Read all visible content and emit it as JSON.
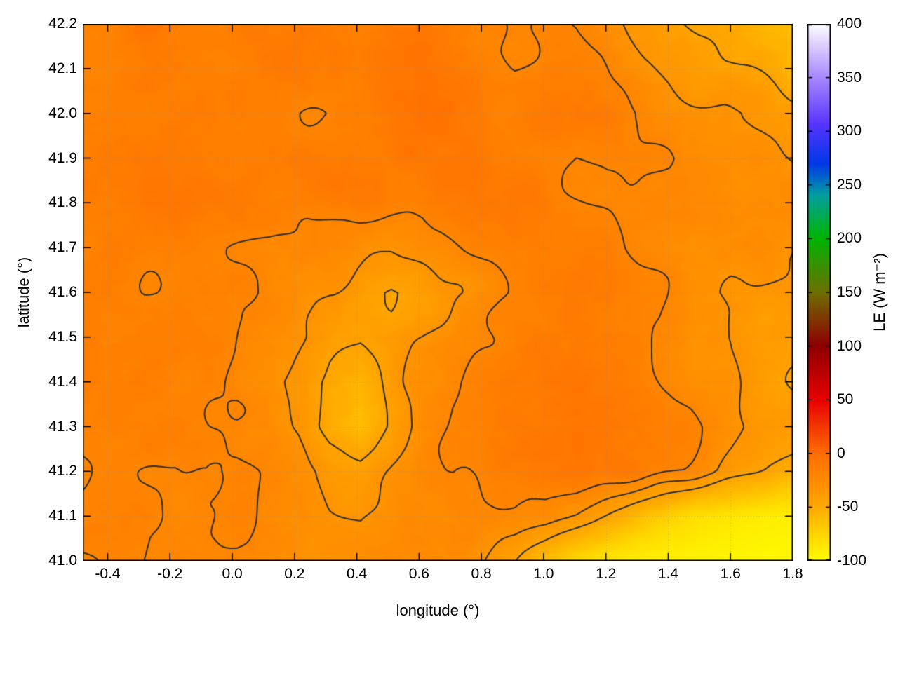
{
  "figure": {
    "background": "#ffffff"
  },
  "chart_data": {
    "type": "heatmap",
    "title": "",
    "xlabel": "longitude (°)",
    "ylabel": "latitude (°)",
    "colorbar_label": "LE (W m⁻²)",
    "x_range": [
      -0.48,
      1.8
    ],
    "y_range": [
      41.0,
      42.2
    ],
    "cb_range": [
      -100,
      400
    ],
    "x_ticks": [
      {
        "value": -0.4,
        "label": "-0.4"
      },
      {
        "value": -0.2,
        "label": "-0.2"
      },
      {
        "value": 0.0,
        "label": "0.0"
      },
      {
        "value": 0.2,
        "label": "0.2"
      },
      {
        "value": 0.4,
        "label": "0.4"
      },
      {
        "value": 0.6,
        "label": "0.6"
      },
      {
        "value": 0.8,
        "label": "0.8"
      },
      {
        "value": 1.0,
        "label": "1.0"
      },
      {
        "value": 1.2,
        "label": "1.2"
      },
      {
        "value": 1.4,
        "label": "1.4"
      },
      {
        "value": 1.6,
        "label": "1.6"
      },
      {
        "value": 1.8,
        "label": "1.8"
      }
    ],
    "y_ticks": [
      {
        "value": 41.0,
        "label": "41.0"
      },
      {
        "value": 41.1,
        "label": "41.1"
      },
      {
        "value": 41.2,
        "label": "41.2"
      },
      {
        "value": 41.3,
        "label": "41.3"
      },
      {
        "value": 41.4,
        "label": "41.4"
      },
      {
        "value": 41.5,
        "label": "41.5"
      },
      {
        "value": 41.6,
        "label": "41.6"
      },
      {
        "value": 41.7,
        "label": "41.7"
      },
      {
        "value": 41.8,
        "label": "41.8"
      },
      {
        "value": 41.9,
        "label": "41.9"
      },
      {
        "value": 42.0,
        "label": "42.0"
      },
      {
        "value": 42.1,
        "label": "42.1"
      },
      {
        "value": 42.2,
        "label": "42.2"
      }
    ],
    "cb_ticks": [
      {
        "value": -100,
        "label": "-100"
      },
      {
        "value": -50,
        "label": "-50"
      },
      {
        "value": 0,
        "label": "0"
      },
      {
        "value": 50,
        "label": "50"
      },
      {
        "value": 100,
        "label": "100"
      },
      {
        "value": 150,
        "label": "150"
      },
      {
        "value": 200,
        "label": "200"
      },
      {
        "value": 250,
        "label": "250"
      },
      {
        "value": 300,
        "label": "300"
      },
      {
        "value": 350,
        "label": "350"
      },
      {
        "value": 400,
        "label": "400"
      }
    ],
    "palette": [
      {
        "value": -100,
        "color": "#ffff00"
      },
      {
        "value": -50,
        "color": "#ffaa00"
      },
      {
        "value": 0,
        "color": "#ff6e00"
      },
      {
        "value": 50,
        "color": "#e80000"
      },
      {
        "value": 100,
        "color": "#8e0000"
      },
      {
        "value": 150,
        "color": "#6f6f00"
      },
      {
        "value": 200,
        "color": "#00b400"
      },
      {
        "value": 240,
        "color": "#00a0a0"
      },
      {
        "value": 270,
        "color": "#0038e8"
      },
      {
        "value": 305,
        "color": "#5533ff"
      },
      {
        "value": 350,
        "color": "#a988ff"
      },
      {
        "value": 400,
        "color": "#ffffff"
      }
    ],
    "contour_levels": [
      -45,
      -32,
      -20
    ],
    "contour_color": "#303030",
    "grid_color": "#8c8c8c",
    "noise_amplitude": 9,
    "field": {
      "nx": 24,
      "ny": 13,
      "lat_top": 42.2,
      "lat_bottom": 41.0,
      "values": [
        [
          -16,
          -14,
          -12,
          -16,
          -18,
          -14,
          -12,
          -14,
          -16,
          -18,
          -14,
          -10,
          -14,
          -16,
          -20,
          -18,
          -22,
          -28,
          -35,
          -42,
          -48,
          -52,
          -58,
          -62
        ],
        [
          -18,
          -16,
          -14,
          -16,
          -18,
          -16,
          -12,
          -10,
          -14,
          -16,
          -12,
          -10,
          -12,
          -14,
          -18,
          -16,
          -18,
          -22,
          -28,
          -34,
          -40,
          -44,
          -50,
          -58
        ],
        [
          -14,
          -16,
          -18,
          -16,
          -14,
          -12,
          -14,
          -16,
          -18,
          -14,
          -10,
          -8,
          -10,
          -12,
          -14,
          -12,
          -14,
          -16,
          -20,
          -24,
          -28,
          -32,
          -36,
          -42
        ],
        [
          -12,
          -10,
          -12,
          -14,
          -16,
          -18,
          -16,
          -14,
          -12,
          -14,
          -16,
          -12,
          -10,
          -12,
          -14,
          -16,
          -18,
          -16,
          -18,
          -20,
          -24,
          -26,
          -30,
          -34
        ],
        [
          -14,
          -12,
          -10,
          -12,
          -14,
          -16,
          -18,
          -20,
          -18,
          -16,
          -18,
          -20,
          -16,
          -14,
          -12,
          -14,
          -16,
          -18,
          -20,
          -22,
          -26,
          -28,
          -26,
          -30
        ],
        [
          -16,
          -14,
          -12,
          -14,
          -16,
          -18,
          -20,
          -24,
          -28,
          -30,
          -32,
          -28,
          -24,
          -20,
          -16,
          -14,
          -16,
          -18,
          -22,
          -26,
          -28,
          -30,
          -28,
          -32
        ],
        [
          -12,
          -14,
          -16,
          -14,
          -12,
          -16,
          -20,
          -26,
          -34,
          -40,
          -46,
          -42,
          -34,
          -26,
          -20,
          -16,
          -14,
          -16,
          -20,
          -24,
          -30,
          -34,
          -36,
          -38
        ],
        [
          -14,
          -16,
          -14,
          -12,
          -14,
          -18,
          -24,
          -30,
          -38,
          -43,
          -41,
          -36,
          -30,
          -24,
          -18,
          -16,
          -14,
          -16,
          -18,
          -22,
          -28,
          -34,
          -40,
          -42
        ],
        [
          -16,
          -14,
          -12,
          -14,
          -16,
          -20,
          -26,
          -36,
          -50,
          -56,
          -42,
          -32,
          -26,
          -20,
          -16,
          -14,
          -12,
          -14,
          -16,
          -20,
          -26,
          -32,
          -38,
          -44
        ],
        [
          -14,
          -12,
          -14,
          -16,
          -18,
          -20,
          -24,
          -36,
          -55,
          -63,
          -45,
          -32,
          -24,
          -18,
          -14,
          -12,
          -10,
          -12,
          -14,
          -18,
          -24,
          -30,
          -36,
          -40
        ],
        [
          -16,
          -14,
          -16,
          -18,
          -16,
          -18,
          -22,
          -28,
          -38,
          -44,
          -36,
          -28,
          -22,
          -18,
          -14,
          -12,
          -10,
          -12,
          -16,
          -20,
          -28,
          -36,
          -44,
          -52
        ],
        [
          -18,
          -16,
          -14,
          -16,
          -18,
          -20,
          -24,
          -28,
          -32,
          -34,
          -30,
          -26,
          -22,
          -20,
          -20,
          -24,
          -34,
          -48,
          -62,
          -74,
          -82,
          -86,
          -89,
          -91
        ],
        [
          -20,
          -18,
          -16,
          -18,
          -20,
          -22,
          -26,
          -30,
          -32,
          -30,
          -28,
          -26,
          -25,
          -30,
          -42,
          -62,
          -80,
          -87,
          -91,
          -93,
          -94,
          -95,
          -96,
          -96
        ]
      ]
    }
  }
}
